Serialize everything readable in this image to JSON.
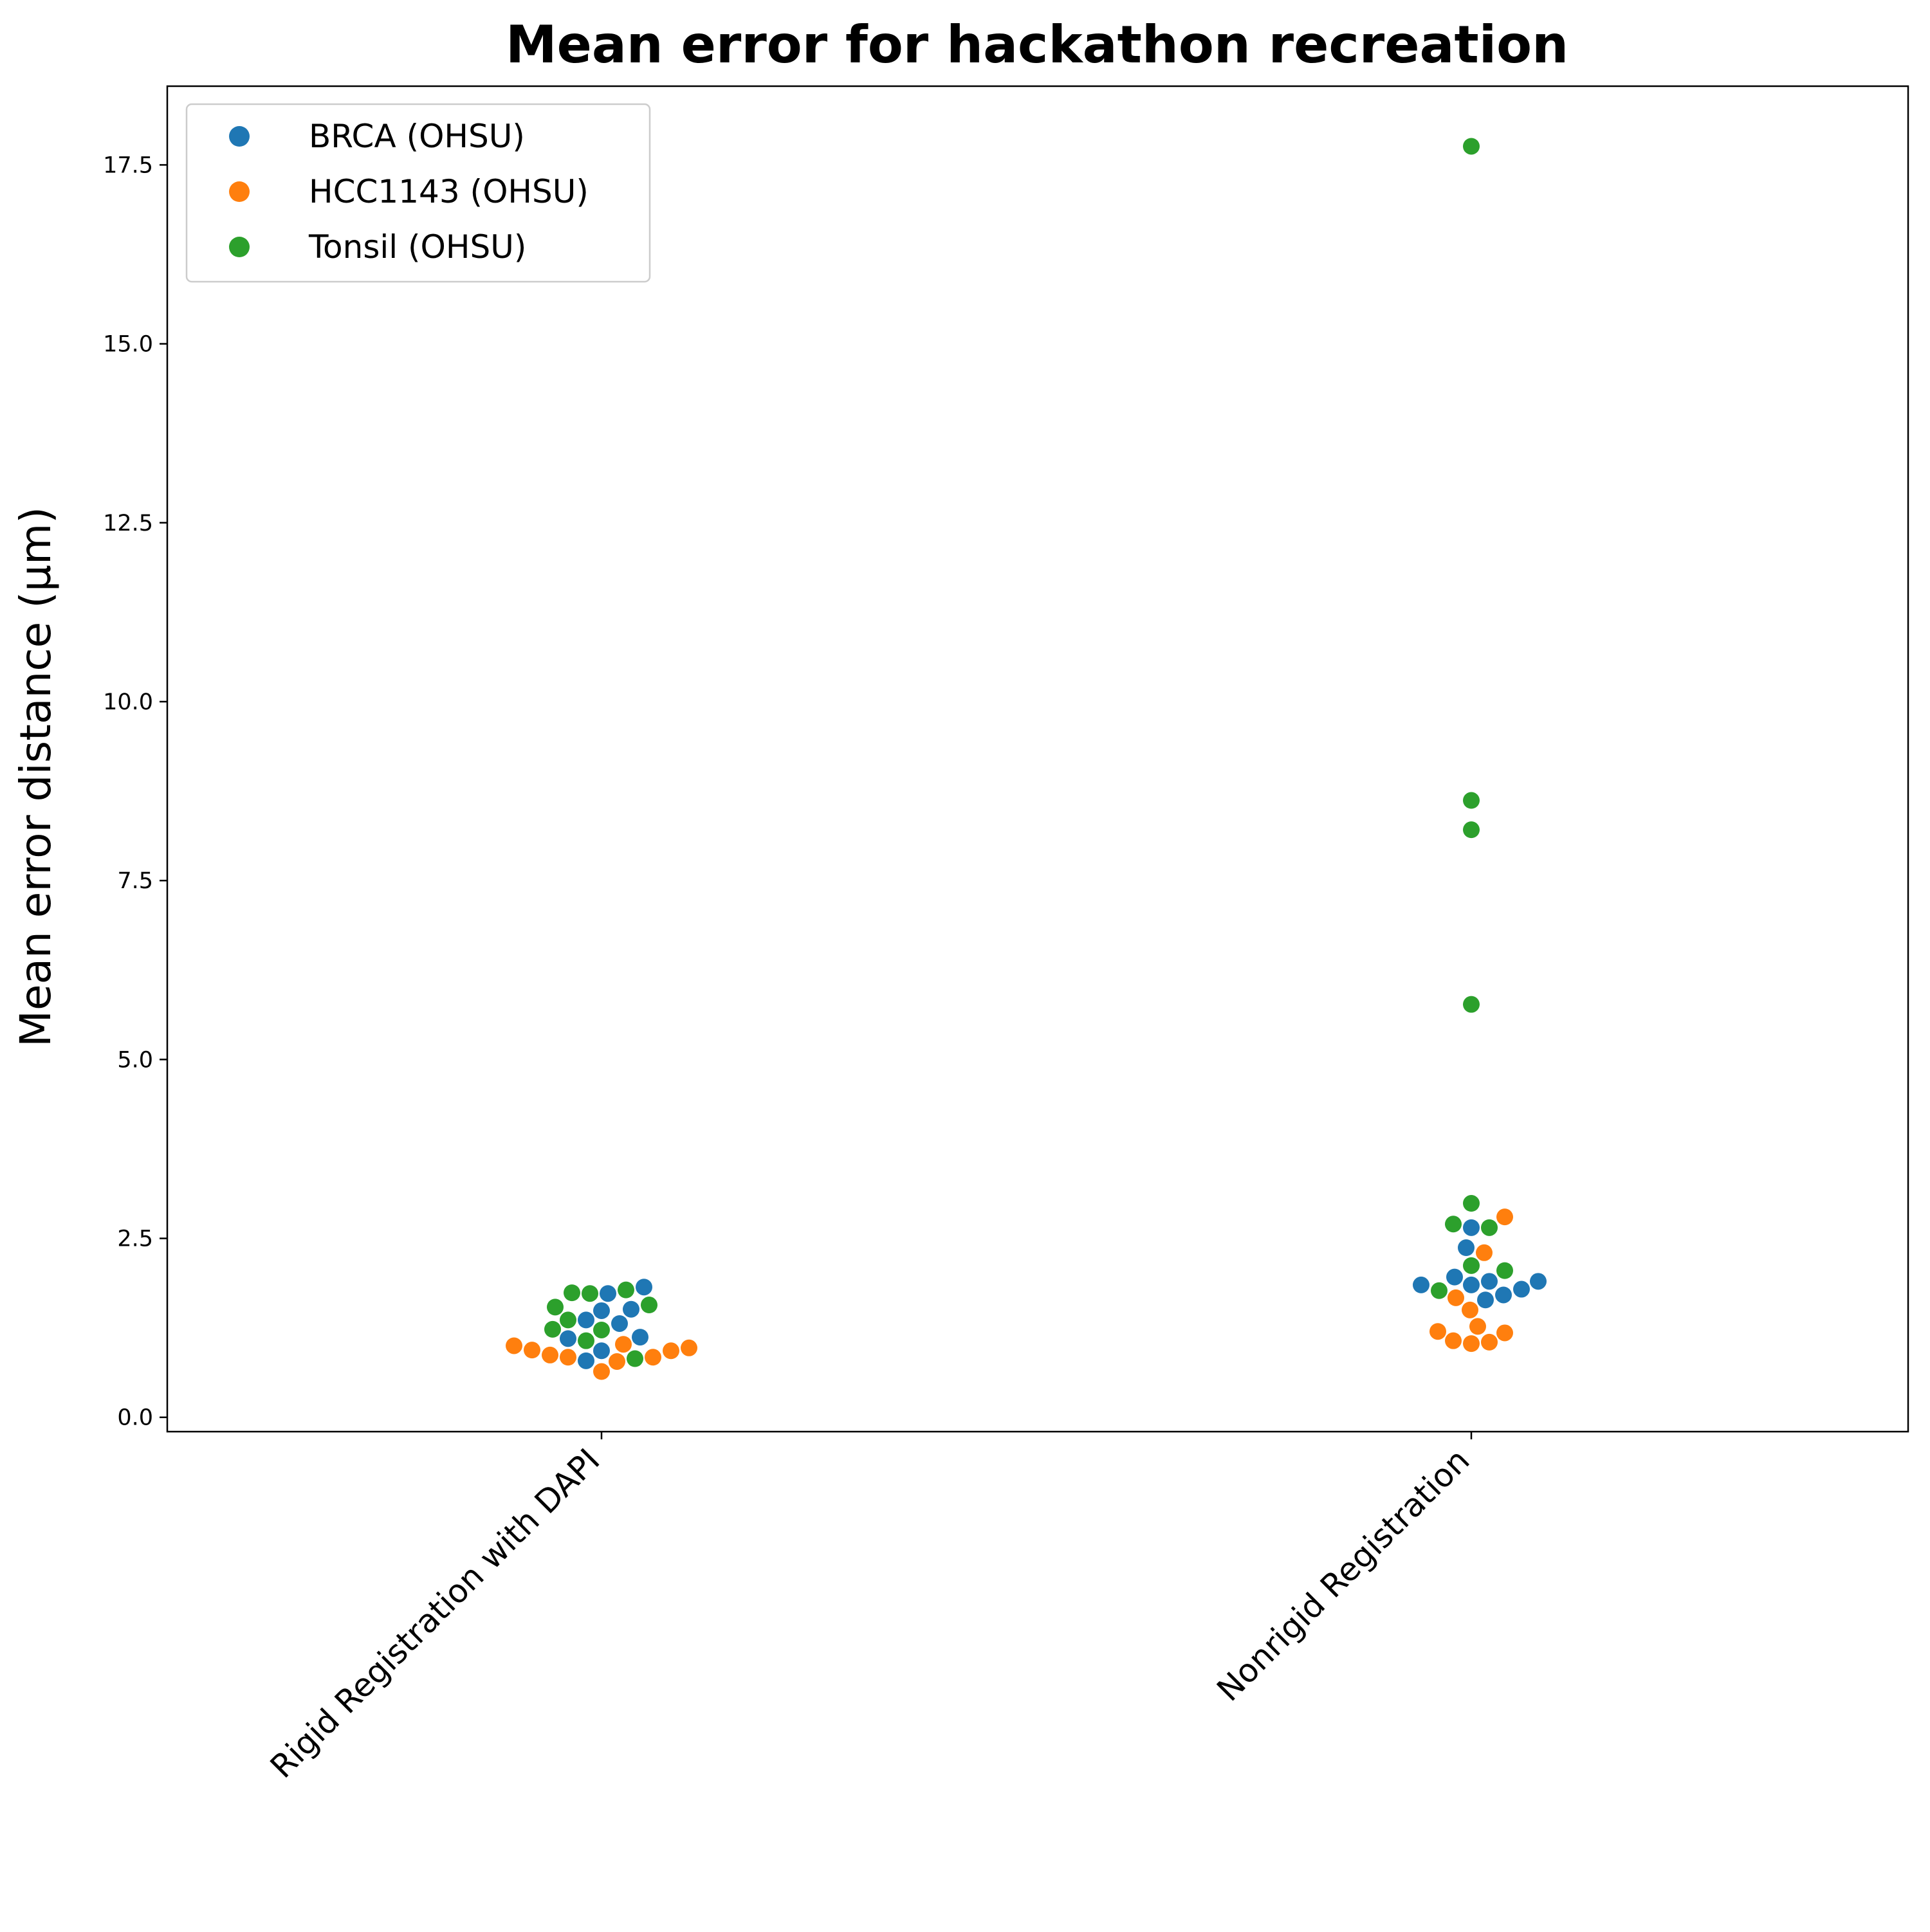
{
  "chart_data": {
    "type": "scatter",
    "subtype": "swarm",
    "title": "Mean error for hackathon recreation",
    "xlabel": "",
    "ylabel": "Mean error distance (µm)",
    "categories": [
      "Rigid Registration with DAPI",
      "Nonrigid Registration"
    ],
    "ylim": [
      -0.2,
      18.6
    ],
    "yticks": [
      0.0,
      2.5,
      5.0,
      7.5,
      10.0,
      12.5,
      15.0,
      17.5
    ],
    "ytick_labels": [
      "0.0",
      "2.5",
      "5.0",
      "7.5",
      "10.0",
      "12.5",
      "15.0",
      "17.5"
    ],
    "grid": false,
    "legend_position": "upper-left",
    "series": [
      {
        "name": "BRCA (OHSU)",
        "color": "#1f77b4",
        "points": [
          {
            "category": "Rigid Registration with DAPI",
            "values": [
              0.79,
              0.93,
              1.1,
              1.12,
              1.31,
              1.36,
              1.49,
              1.51,
              1.73,
              1.82
            ]
          },
          {
            "category": "Nonrigid Registration",
            "values": [
              1.64,
              1.71,
              1.79,
              1.85,
              1.85,
              1.9,
              1.9,
              1.96,
              2.37,
              2.65
            ]
          }
        ]
      },
      {
        "name": "HCC1143 (OHSU)",
        "color": "#ff7f0e",
        "points": [
          {
            "category": "Rigid Registration with DAPI",
            "values": [
              0.64,
              0.78,
              0.84,
              0.84,
              0.87,
              0.93,
              0.94,
              0.97,
              1.0,
              1.02
            ]
          },
          {
            "category": "Nonrigid Registration",
            "values": [
              1.03,
              1.05,
              1.07,
              1.18,
              1.2,
              1.27,
              1.5,
              1.67,
              2.3,
              2.8
            ]
          }
        ]
      },
      {
        "name": "Tonsil (OHSU)",
        "color": "#2ca02c",
        "points": [
          {
            "category": "Rigid Registration with DAPI",
            "values": [
              0.82,
              1.07,
              1.22,
              1.23,
              1.36,
              1.54,
              1.57,
              1.73,
              1.74,
              1.78
            ]
          },
          {
            "category": "Nonrigid Registration",
            "values": [
              1.77,
              2.05,
              2.12,
              2.65,
              2.7,
              2.99,
              5.77,
              8.21,
              8.62,
              17.76
            ]
          }
        ]
      }
    ]
  }
}
